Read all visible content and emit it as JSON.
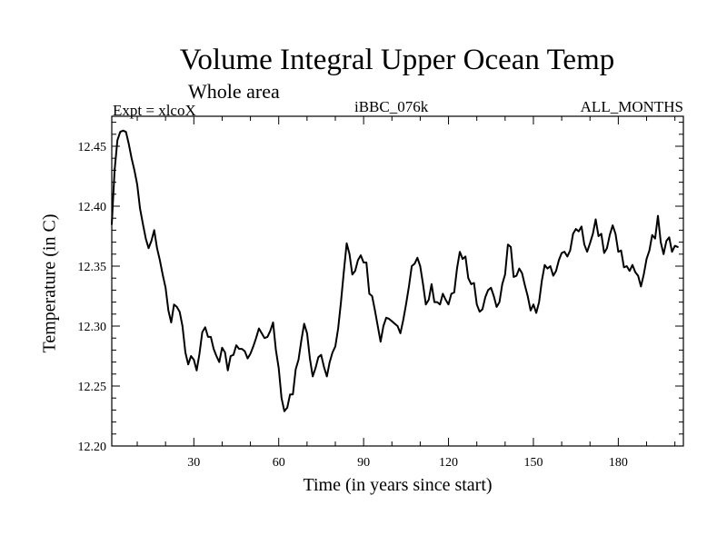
{
  "chart_data": {
    "type": "line",
    "title": "Volume Integral Upper Ocean Temp",
    "subtitle": "Whole area",
    "left_label": "Expt = xlcoX",
    "center_label": "iBBC_076k",
    "right_label": "ALL_MONTHS",
    "xlabel": "Time (in years since start)",
    "ylabel": "Temperature (in C)",
    "xlim": [
      1,
      203
    ],
    "ylim": [
      12.2,
      12.475
    ],
    "xticks": [
      30,
      60,
      90,
      120,
      150,
      180
    ],
    "yticks": [
      12.2,
      12.25,
      12.3,
      12.35,
      12.4,
      12.45
    ],
    "ytick_labels": [
      "12.20",
      "12.25",
      "12.30",
      "12.35",
      "12.40",
      "12.45"
    ],
    "grid": false,
    "series": [
      {
        "name": "Temperature",
        "points": [
          [
            1,
            12.385
          ],
          [
            2,
            12.43
          ],
          [
            3,
            12.455
          ],
          [
            4,
            12.462
          ],
          [
            5,
            12.463
          ],
          [
            6,
            12.462
          ],
          [
            7,
            12.452
          ],
          [
            8,
            12.44
          ],
          [
            9,
            12.43
          ],
          [
            10,
            12.418
          ],
          [
            11,
            12.398
          ],
          [
            12,
            12.385
          ],
          [
            13,
            12.373
          ],
          [
            14,
            12.365
          ],
          [
            15,
            12.371
          ],
          [
            16,
            12.38
          ],
          [
            17,
            12.365
          ],
          [
            18,
            12.355
          ],
          [
            19,
            12.343
          ],
          [
            20,
            12.332
          ],
          [
            21,
            12.313
          ],
          [
            22,
            12.303
          ],
          [
            23,
            12.318
          ],
          [
            24,
            12.316
          ],
          [
            25,
            12.312
          ],
          [
            26,
            12.3
          ],
          [
            27,
            12.278
          ],
          [
            28,
            12.268
          ],
          [
            29,
            12.275
          ],
          [
            30,
            12.272
          ],
          [
            31,
            12.263
          ],
          [
            32,
            12.277
          ],
          [
            33,
            12.295
          ],
          [
            34,
            12.299
          ],
          [
            35,
            12.291
          ],
          [
            36,
            12.291
          ],
          [
            37,
            12.281
          ],
          [
            38,
            12.275
          ],
          [
            39,
            12.27
          ],
          [
            40,
            12.282
          ],
          [
            41,
            12.278
          ],
          [
            42,
            12.263
          ],
          [
            43,
            12.275
          ],
          [
            44,
            12.276
          ],
          [
            45,
            12.284
          ],
          [
            46,
            12.281
          ],
          [
            47,
            12.281
          ],
          [
            48,
            12.279
          ],
          [
            49,
            12.273
          ],
          [
            50,
            12.277
          ],
          [
            51,
            12.283
          ],
          [
            52,
            12.29
          ],
          [
            53,
            12.298
          ],
          [
            54,
            12.294
          ],
          [
            55,
            12.29
          ],
          [
            56,
            12.291
          ],
          [
            57,
            12.296
          ],
          [
            58,
            12.303
          ],
          [
            59,
            12.28
          ],
          [
            60,
            12.265
          ],
          [
            61,
            12.24
          ],
          [
            62,
            12.229
          ],
          [
            63,
            12.232
          ],
          [
            64,
            12.243
          ],
          [
            65,
            12.243
          ],
          [
            66,
            12.264
          ],
          [
            67,
            12.272
          ],
          [
            68,
            12.288
          ],
          [
            69,
            12.302
          ],
          [
            70,
            12.294
          ],
          [
            71,
            12.273
          ],
          [
            72,
            12.258
          ],
          [
            73,
            12.265
          ],
          [
            74,
            12.274
          ],
          [
            75,
            12.276
          ],
          [
            76,
            12.266
          ],
          [
            77,
            12.258
          ],
          [
            78,
            12.27
          ],
          [
            79,
            12.278
          ],
          [
            80,
            12.283
          ],
          [
            81,
            12.298
          ],
          [
            82,
            12.32
          ],
          [
            83,
            12.345
          ],
          [
            84,
            12.369
          ],
          [
            85,
            12.36
          ],
          [
            86,
            12.343
          ],
          [
            87,
            12.346
          ],
          [
            88,
            12.355
          ],
          [
            89,
            12.359
          ],
          [
            90,
            12.353
          ],
          [
            91,
            12.353
          ],
          [
            92,
            12.327
          ],
          [
            93,
            12.325
          ],
          [
            94,
            12.313
          ],
          [
            95,
            12.3
          ],
          [
            96,
            12.287
          ],
          [
            97,
            12.3
          ],
          [
            98,
            12.307
          ],
          [
            99,
            12.306
          ],
          [
            100,
            12.304
          ],
          [
            101,
            12.302
          ],
          [
            102,
            12.3
          ],
          [
            103,
            12.294
          ],
          [
            104,
            12.305
          ],
          [
            105,
            12.318
          ],
          [
            106,
            12.333
          ],
          [
            107,
            12.35
          ],
          [
            108,
            12.352
          ],
          [
            109,
            12.357
          ],
          [
            110,
            12.35
          ],
          [
            111,
            12.335
          ],
          [
            112,
            12.318
          ],
          [
            113,
            12.322
          ],
          [
            114,
            12.335
          ],
          [
            115,
            12.32
          ],
          [
            116,
            12.32
          ],
          [
            117,
            12.318
          ],
          [
            118,
            12.327
          ],
          [
            119,
            12.322
          ],
          [
            120,
            12.318
          ],
          [
            121,
            12.327
          ],
          [
            122,
            12.328
          ],
          [
            123,
            12.348
          ],
          [
            124,
            12.362
          ],
          [
            125,
            12.356
          ],
          [
            126,
            12.358
          ],
          [
            127,
            12.34
          ],
          [
            128,
            12.335
          ],
          [
            129,
            12.336
          ],
          [
            130,
            12.318
          ],
          [
            131,
            12.312
          ],
          [
            132,
            12.314
          ],
          [
            133,
            12.324
          ],
          [
            134,
            12.33
          ],
          [
            135,
            12.332
          ],
          [
            136,
            12.325
          ],
          [
            137,
            12.316
          ],
          [
            138,
            12.32
          ],
          [
            139,
            12.335
          ],
          [
            140,
            12.343
          ],
          [
            141,
            12.368
          ],
          [
            142,
            12.366
          ],
          [
            143,
            12.341
          ],
          [
            144,
            12.342
          ],
          [
            145,
            12.348
          ],
          [
            146,
            12.344
          ],
          [
            147,
            12.334
          ],
          [
            148,
            12.325
          ],
          [
            149,
            12.313
          ],
          [
            150,
            12.318
          ],
          [
            151,
            12.311
          ],
          [
            152,
            12.32
          ],
          [
            153,
            12.338
          ],
          [
            154,
            12.351
          ],
          [
            155,
            12.348
          ],
          [
            156,
            12.35
          ],
          [
            157,
            12.342
          ],
          [
            158,
            12.346
          ],
          [
            159,
            12.355
          ],
          [
            160,
            12.361
          ],
          [
            161,
            12.362
          ],
          [
            162,
            12.358
          ],
          [
            163,
            12.363
          ],
          [
            164,
            12.377
          ],
          [
            165,
            12.381
          ],
          [
            166,
            12.379
          ],
          [
            167,
            12.383
          ],
          [
            168,
            12.368
          ],
          [
            169,
            12.362
          ],
          [
            170,
            12.369
          ],
          [
            171,
            12.377
          ],
          [
            172,
            12.389
          ],
          [
            173,
            12.375
          ],
          [
            174,
            12.377
          ],
          [
            175,
            12.361
          ],
          [
            176,
            12.365
          ],
          [
            177,
            12.376
          ],
          [
            178,
            12.384
          ],
          [
            179,
            12.377
          ],
          [
            180,
            12.362
          ],
          [
            181,
            12.363
          ],
          [
            182,
            12.349
          ],
          [
            183,
            12.35
          ],
          [
            184,
            12.346
          ],
          [
            185,
            12.351
          ],
          [
            186,
            12.345
          ],
          [
            187,
            12.342
          ],
          [
            188,
            12.333
          ],
          [
            189,
            12.343
          ],
          [
            190,
            12.356
          ],
          [
            191,
            12.363
          ],
          [
            192,
            12.376
          ],
          [
            193,
            12.373
          ],
          [
            194,
            12.392
          ],
          [
            195,
            12.37
          ],
          [
            196,
            12.36
          ],
          [
            197,
            12.371
          ],
          [
            198,
            12.374
          ],
          [
            199,
            12.362
          ],
          [
            200,
            12.367
          ],
          [
            201,
            12.366
          ]
        ]
      }
    ]
  }
}
